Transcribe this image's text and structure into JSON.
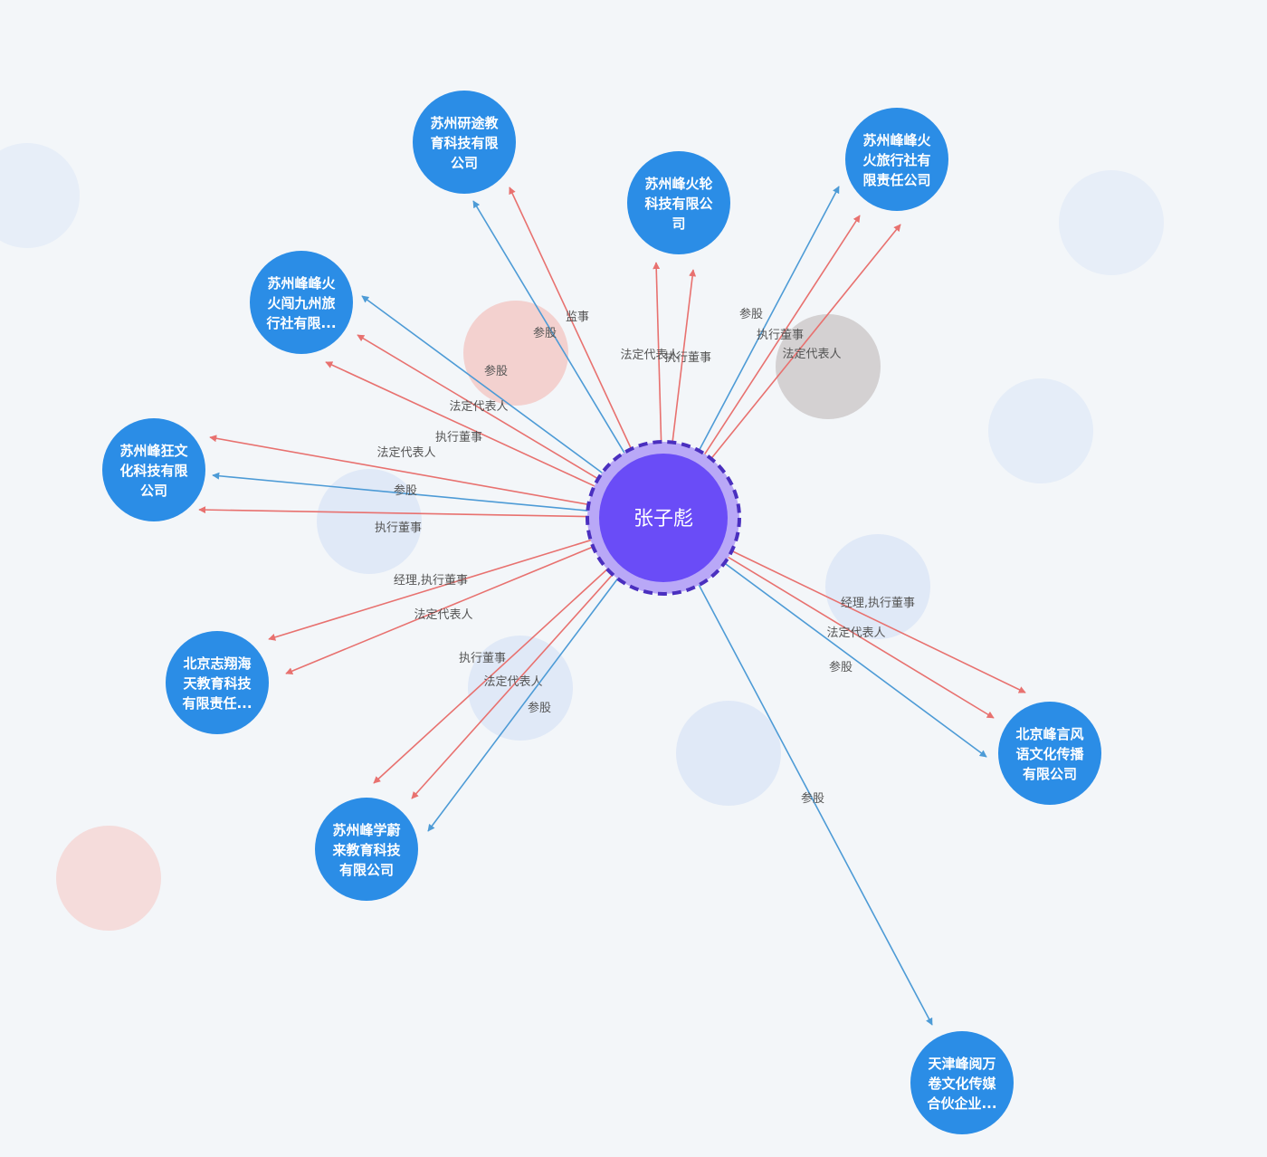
{
  "center": {
    "name": "张子彪"
  },
  "colors": {
    "background": "#f3f6f9",
    "company_node": "#2b8de6",
    "center_node": "#6a4cf7",
    "center_ring": "#b9a8f7",
    "center_dash": "#4a2fbf",
    "role_edge": "#e8716f",
    "share_edge": "#4d9bd6"
  },
  "companies": [
    {
      "lines": [
        "苏州研途教",
        "育科技有限",
        "公司"
      ]
    },
    {
      "lines": [
        "苏州峰火轮",
        "科技有限公",
        "司"
      ]
    },
    {
      "lines": [
        "苏州峰峰火",
        "火旅行社有",
        "限责任公司"
      ]
    },
    {
      "lines": [
        "苏州峰峰火",
        "火闯九州旅",
        "行社有限..."
      ]
    },
    {
      "lines": [
        "苏州峰狂文",
        "化科技有限",
        "公司"
      ]
    },
    {
      "lines": [
        "北京志翔海",
        "天教育科技",
        "有限责任..."
      ]
    },
    {
      "lines": [
        "苏州峰学蔚",
        "来教育科技",
        "有限公司"
      ]
    },
    {
      "lines": [
        "北京峰言风",
        "语文化传播",
        "有限公司"
      ]
    },
    {
      "lines": [
        "天津峰阅万",
        "卷文化传媒",
        "合伙企业..."
      ]
    }
  ],
  "edges": [
    {
      "target": 0,
      "label": "参股",
      "kind": "share"
    },
    {
      "target": 0,
      "label": "监事",
      "kind": "role"
    },
    {
      "target": 1,
      "label": "法定代表人",
      "kind": "role"
    },
    {
      "target": 1,
      "label": "执行董事",
      "kind": "role"
    },
    {
      "target": 2,
      "label": "参股",
      "kind": "share"
    },
    {
      "target": 2,
      "label": "执行董事",
      "kind": "role"
    },
    {
      "target": 2,
      "label": "法定代表人",
      "kind": "role"
    },
    {
      "target": 3,
      "label": "参股",
      "kind": "share"
    },
    {
      "target": 3,
      "label": "法定代表人",
      "kind": "role"
    },
    {
      "target": 3,
      "label": "执行董事",
      "kind": "role"
    },
    {
      "target": 4,
      "label": "法定代表人",
      "kind": "role"
    },
    {
      "target": 4,
      "label": "参股",
      "kind": "share"
    },
    {
      "target": 4,
      "label": "执行董事",
      "kind": "role"
    },
    {
      "target": 5,
      "label": "经理,执行董事",
      "kind": "role"
    },
    {
      "target": 5,
      "label": "法定代表人",
      "kind": "role"
    },
    {
      "target": 6,
      "label": "执行董事",
      "kind": "role"
    },
    {
      "target": 6,
      "label": "法定代表人",
      "kind": "role"
    },
    {
      "target": 6,
      "label": "参股",
      "kind": "share"
    },
    {
      "target": 7,
      "label": "经理,执行董事",
      "kind": "role"
    },
    {
      "target": 7,
      "label": "法定代表人",
      "kind": "role"
    },
    {
      "target": 7,
      "label": "参股",
      "kind": "share"
    },
    {
      "target": 8,
      "label": "参股",
      "kind": "share"
    }
  ]
}
